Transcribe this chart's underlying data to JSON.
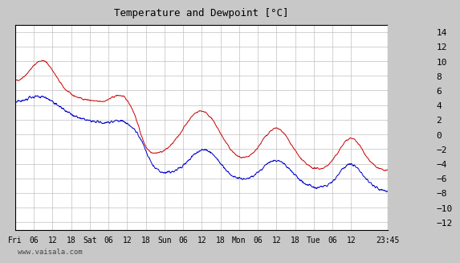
{
  "title": "Temperature and Dewpoint [°C]",
  "ylim": [
    -13,
    15
  ],
  "yticks": [
    -12,
    -10,
    -8,
    -6,
    -4,
    -2,
    0,
    2,
    4,
    6,
    8,
    10,
    12,
    14
  ],
  "plot_bg": "#ffffff",
  "frame_bg": "#c8c8c8",
  "grid_color": "#c0c0c0",
  "temp_color": "#cc0000",
  "dew_color": "#0000cc",
  "watermark": "www.vaisala.com",
  "xlabel_ticks": [
    "Fri",
    "06",
    "12",
    "18",
    "Sat",
    "06",
    "12",
    "18",
    "Sun",
    "06",
    "12",
    "18",
    "Mon",
    "06",
    "12",
    "18",
    "Tue",
    "06",
    "12",
    "23:45"
  ],
  "xtick_hours": [
    0,
    6,
    12,
    18,
    24,
    30,
    36,
    42,
    48,
    54,
    60,
    66,
    72,
    78,
    84,
    90,
    96,
    102,
    108,
    119.75
  ],
  "total_hours": 119.75,
  "n_points": 1440
}
